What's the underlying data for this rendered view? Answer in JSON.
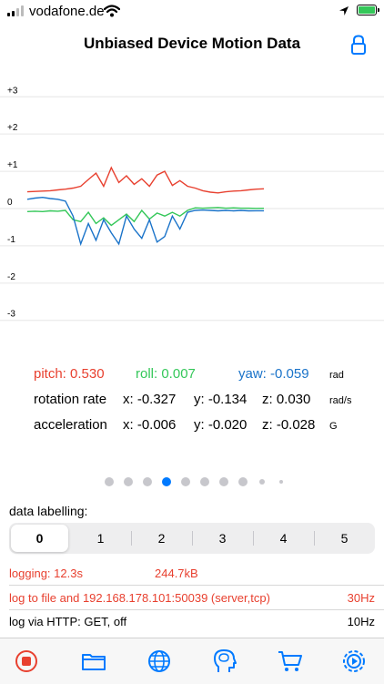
{
  "status": {
    "carrier": "vodafone.de"
  },
  "header": {
    "title": "Unbiased Device Motion Data"
  },
  "chart_data": {
    "type": "line",
    "ylim": [
      -3.3,
      3.3
    ],
    "yticks": [
      "+3",
      "+2",
      "+1",
      "0",
      "-1",
      "-2",
      "-3"
    ],
    "grid": true,
    "series": [
      {
        "name": "pitch",
        "color": "#e8402f",
        "values": [
          0.45,
          0.46,
          0.47,
          0.48,
          0.5,
          0.52,
          0.55,
          0.6,
          0.78,
          0.95,
          0.6,
          1.1,
          0.7,
          0.88,
          0.65,
          0.8,
          0.6,
          0.9,
          1.0,
          0.62,
          0.75,
          0.6,
          0.55,
          0.48,
          0.44,
          0.42,
          0.45,
          0.47,
          0.48,
          0.5,
          0.52,
          0.53
        ]
      },
      {
        "name": "roll",
        "color": "#34c759",
        "values": [
          -0.08,
          -0.07,
          -0.08,
          -0.06,
          -0.07,
          -0.05,
          -0.3,
          -0.35,
          -0.1,
          -0.4,
          -0.25,
          -0.45,
          -0.3,
          -0.15,
          -0.35,
          -0.05,
          -0.28,
          -0.12,
          -0.2,
          -0.1,
          -0.2,
          -0.05,
          0.02,
          0.01,
          0.02,
          0.03,
          0.01,
          0.02,
          0.01,
          0.01,
          0.005,
          0.007
        ]
      },
      {
        "name": "yaw",
        "color": "#1a73c9",
        "values": [
          0.25,
          0.28,
          0.3,
          0.27,
          0.25,
          0.2,
          -0.2,
          -0.95,
          -0.4,
          -0.85,
          -0.3,
          -0.65,
          -0.95,
          -0.2,
          -0.55,
          -0.8,
          -0.3,
          -0.9,
          -0.75,
          -0.2,
          -0.55,
          -0.1,
          -0.05,
          -0.04,
          -0.05,
          -0.06,
          -0.05,
          -0.06,
          -0.05,
          -0.06,
          -0.059,
          -0.059
        ]
      }
    ]
  },
  "readings": {
    "pitch": "pitch: 0.530",
    "roll": "roll: 0.007",
    "yaw": "yaw: -0.059",
    "angle_unit": "rad",
    "rotation_label": "rotation rate",
    "rotation_x": "x: -0.327",
    "rotation_y": "y: -0.134",
    "rotation_z": "z: 0.030",
    "rotation_unit": "rad/s",
    "accel_label": "acceleration",
    "accel_x": "x: -0.006",
    "accel_y": "y: -0.020",
    "accel_z": "z: -0.028",
    "accel_unit": "G"
  },
  "pager": {
    "count": 10,
    "active_index": 3
  },
  "labelling": {
    "title": "data labelling:",
    "options": [
      "0",
      "1",
      "2",
      "3",
      "4",
      "5"
    ],
    "selected": "0"
  },
  "info": {
    "logging": "logging:  12.3s",
    "size": "244.7kB",
    "log_target": "log to file and 192.168.178.101:50039 (server,tcp)",
    "log_rate": "30Hz",
    "http": "log via HTTP: GET, off",
    "http_rate": "10Hz"
  },
  "colors": {
    "pitch": "#e8402f",
    "roll": "#34c759",
    "yaw": "#1a73c9",
    "accent": "#007aff",
    "logging_red": "#e8402f"
  },
  "tabs": [
    {
      "icon": "record-stop-icon"
    },
    {
      "icon": "folder-icon"
    },
    {
      "icon": "globe-network-icon"
    },
    {
      "icon": "brain-head-icon"
    },
    {
      "icon": "shopping-cart-icon"
    },
    {
      "icon": "settings-gear-icon"
    }
  ]
}
